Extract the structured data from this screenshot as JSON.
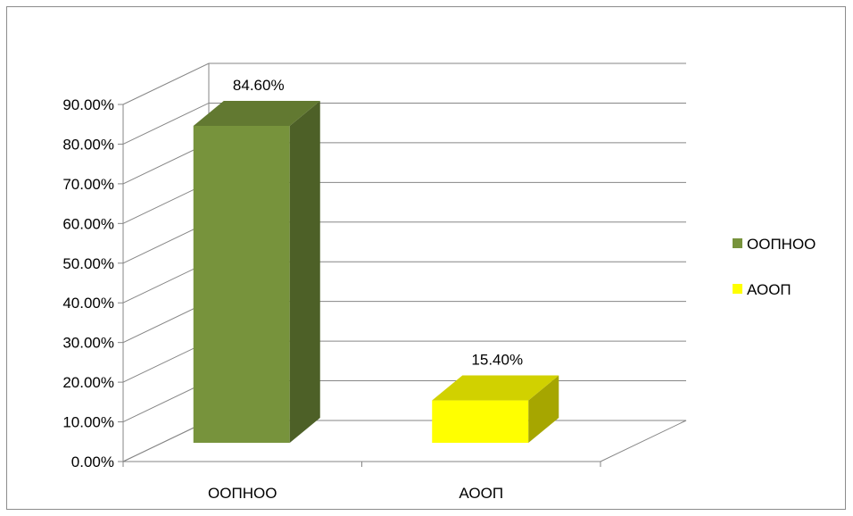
{
  "chart_data": {
    "type": "bar",
    "style": "3d-column",
    "categories": [
      "ООПНОО",
      "АООП"
    ],
    "values": [
      0.846,
      0.154
    ],
    "data_labels": [
      "84.60%",
      "15.40%"
    ],
    "colors": [
      "#77933c",
      "#ffff00"
    ],
    "legend": {
      "position": "right",
      "entries": [
        {
          "label": "ООПНОО",
          "color": "#77933c"
        },
        {
          "label": "АООП",
          "color": "#ffff00"
        }
      ]
    },
    "ylim": [
      0,
      0.9
    ],
    "y_ticks": [
      0,
      0.1,
      0.2,
      0.3,
      0.4,
      0.5,
      0.6,
      0.7,
      0.8,
      0.9
    ],
    "y_tick_labels": [
      "0.00%",
      "10.00%",
      "20.00%",
      "30.00%",
      "40.00%",
      "50.00%",
      "60.00%",
      "70.00%",
      "80.00%",
      "90.00%"
    ],
    "grid": true
  }
}
